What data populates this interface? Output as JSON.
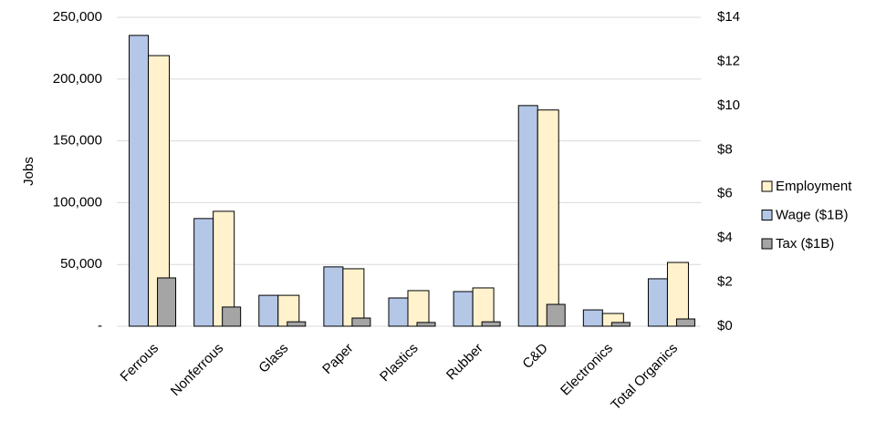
{
  "chart_data": {
    "type": "bar",
    "y_label": "Jobs",
    "categories": [
      "Ferrous",
      "Nonferrous",
      "Glass",
      "Paper",
      "Plastics",
      "Rubber",
      "C&D",
      "Electronics",
      "Total Organics"
    ],
    "series": [
      {
        "name": "Employment",
        "color": "#fff2cc",
        "values": [
          219000,
          93000,
          25000,
          46500,
          28800,
          31000,
          175000,
          10300,
          51600
        ]
      },
      {
        "name": "Wage ($1B)",
        "color": "#b4c7e7",
        "axis": "y2",
        "values": [
          13.18,
          4.88,
          1.4,
          2.69,
          1.28,
          1.57,
          10.0,
          0.74,
          2.15
        ]
      },
      {
        "name": "Tax ($1B)",
        "color": "#a5a5a5",
        "axis": "y2",
        "values": [
          2.19,
          0.87,
          0.2,
          0.37,
          0.17,
          0.2,
          0.99,
          0.17,
          0.33
        ]
      }
    ],
    "ylim": [
      0,
      250000
    ],
    "yticks": [
      {
        "value": 0,
        "label": "-"
      },
      {
        "value": 50000,
        "label": "50,000"
      },
      {
        "value": 100000,
        "label": "100,000"
      },
      {
        "value": 150000,
        "label": "150,000"
      },
      {
        "value": 200000,
        "label": "200,000"
      },
      {
        "value": 250000,
        "label": "250,000"
      }
    ],
    "y2lim": [
      0,
      14
    ],
    "y2ticks": [
      {
        "value": 0,
        "label": "$0"
      },
      {
        "value": 2,
        "label": "$2"
      },
      {
        "value": 4,
        "label": "$4"
      },
      {
        "value": 6,
        "label": "$6"
      },
      {
        "value": 8,
        "label": "$8"
      },
      {
        "value": 10,
        "label": "$10"
      },
      {
        "value": 12,
        "label": "$12"
      },
      {
        "value": 14,
        "label": "$14"
      }
    ],
    "grid": true,
    "legend": "right"
  }
}
